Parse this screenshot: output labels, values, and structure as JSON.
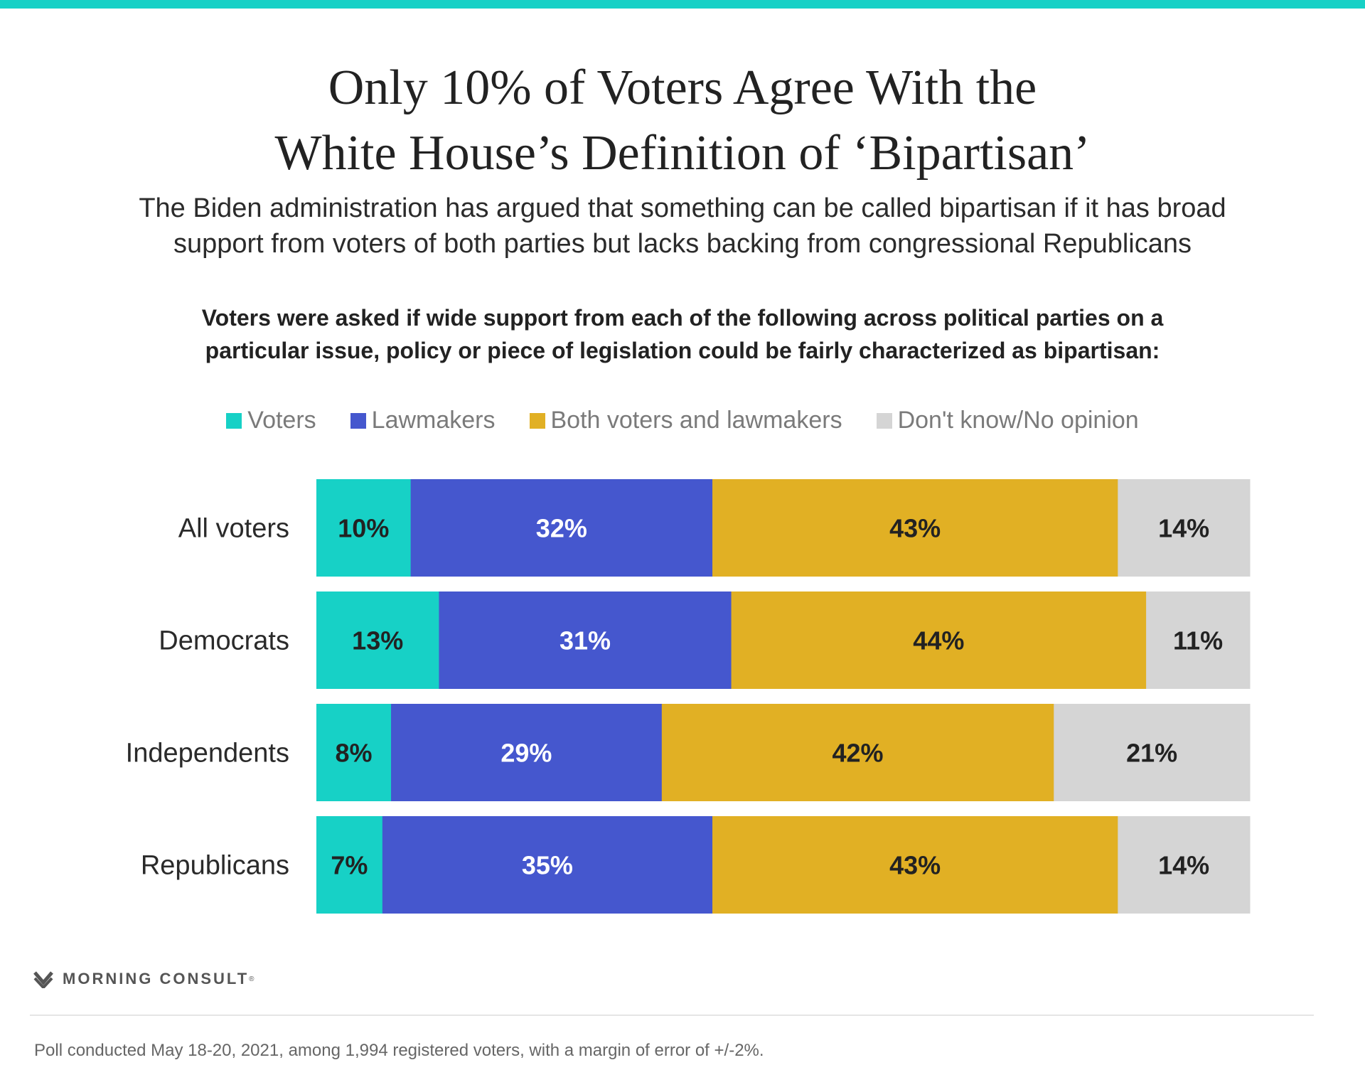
{
  "header": {
    "title_line1": "Only 10% of Voters Agree With the",
    "title_line2": "White House’s Definition of ‘Bipartisan’",
    "subtitle_line1": "The Biden administration has argued that something can be called bipartisan if it has broad",
    "subtitle_line2": "support from voters of both parties but lacks backing from congressional Republicans",
    "question_line1": "Voters were asked if wide support from each of the following across political parties on a",
    "question_line2": "particular issue, policy or piece of legislation could be fairly characterized as bipartisan:"
  },
  "colors": {
    "accent": "#17d1c6",
    "Voters": "#17d1c6",
    "Lawmakers": "#4557ce",
    "Both voters and lawmakers": "#e1b024",
    "Don't know/No opinion": "#d5d5d5"
  },
  "chart_data": {
    "type": "bar",
    "orientation": "horizontal",
    "stacked": true,
    "categories": [
      "All voters",
      "Democrats",
      "Independents",
      "Republicans"
    ],
    "series": [
      {
        "name": "Voters",
        "values": [
          10,
          13,
          8,
          7
        ],
        "labels": [
          "10%",
          "13%",
          "8%",
          "7%"
        ]
      },
      {
        "name": "Lawmakers",
        "values": [
          32,
          31,
          29,
          35
        ],
        "labels": [
          "32%",
          "31%",
          "29%",
          "35%"
        ]
      },
      {
        "name": "Both voters and lawmakers",
        "values": [
          43,
          44,
          42,
          43
        ],
        "labels": [
          "43%",
          "44%",
          "42%",
          "43%"
        ]
      },
      {
        "name": "Don't know/No opinion",
        "values": [
          14,
          11,
          21,
          14
        ],
        "labels": [
          "14%",
          "11%",
          "21%",
          "14%"
        ]
      }
    ],
    "xlim": [
      0,
      100
    ],
    "legend": "top-center",
    "grid": false
  },
  "footer": {
    "brand": "MORNING CONSULT",
    "trademark": "®",
    "note": "Poll conducted May 18-20, 2021, among 1,994 registered voters, with a margin of error of +/-2%."
  }
}
